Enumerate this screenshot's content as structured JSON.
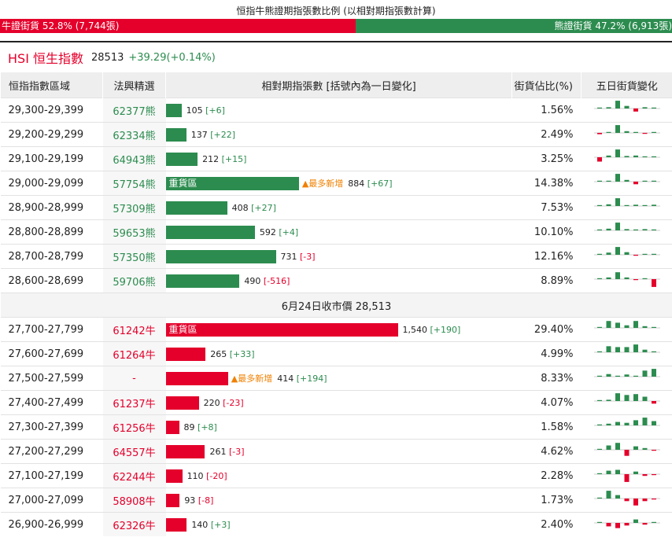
{
  "ratio": {
    "title": "恒指牛熊證期指張數比例 (以相對期指張數計算)",
    "bull_label": "牛證街貨 52.8% (7,744張)",
    "bear_label": "熊證街貨 47.2% (6,913張)",
    "bull_pct": 52.8,
    "bear_pct": 47.2,
    "bull_color": "#e4002b",
    "bear_color": "#2c8c4f"
  },
  "hsi": {
    "name": "HSI 恒生指數",
    "price": "28513",
    "change": "+39.29(+0.14%)"
  },
  "table": {
    "headers": [
      "恒指指數區域",
      "法興精選",
      "相對期指張數 [括號內為一日變化]",
      "街貨佔比(%)",
      "五日街貨變化"
    ],
    "heavy_label": "重貨區",
    "newest_label": "▲最多新增",
    "mid_label": "6月24日收市價 28,513",
    "max_count": 1540,
    "bear_rows": [
      {
        "range": "29,300-29,399",
        "code": "62377熊",
        "count": 105,
        "count_text": "105",
        "chg": "[+6]",
        "pct": "1.56%",
        "spark": [
          0.1,
          0.15,
          0.9,
          0.3,
          -0.35,
          0.15,
          0.1
        ]
      },
      {
        "range": "29,200-29,299",
        "code": "62334熊",
        "count": 137,
        "count_text": "137",
        "chg": "[+22]",
        "pct": "2.49%",
        "spark": [
          -0.15,
          0.1,
          0.9,
          0.2,
          0.1,
          -0.1,
          0.1
        ]
      },
      {
        "range": "29,100-29,199",
        "code": "64943熊",
        "count": 212,
        "count_text": "212",
        "chg": "[+15]",
        "pct": "3.25%",
        "spark": [
          -0.5,
          0.2,
          0.9,
          0.15,
          0.2,
          0.1,
          0.1
        ]
      },
      {
        "range": "29,000-29,099",
        "code": "57754熊",
        "count": 884,
        "count_text": "884",
        "chg": "[+67]",
        "pct": "14.38%",
        "heavy": true,
        "newest": true,
        "spark": [
          0.1,
          0.1,
          0.9,
          0.2,
          -0.3,
          0.1,
          0.1
        ]
      },
      {
        "range": "28,900-28,999",
        "code": "57309熊",
        "count": 408,
        "count_text": "408",
        "chg": "[+27]",
        "pct": "7.53%",
        "spark": [
          0.1,
          0.2,
          0.9,
          0.1,
          0.15,
          0.1,
          0.15
        ]
      },
      {
        "range": "28,800-28,899",
        "code": "59653熊",
        "count": 592,
        "count_text": "592",
        "chg": "[+4]",
        "pct": "10.10%",
        "spark": [
          0.1,
          0.2,
          0.9,
          0.15,
          0.1,
          0.15,
          0.05
        ]
      },
      {
        "range": "28,700-28,799",
        "code": "57350熊",
        "count": 731,
        "count_text": "731",
        "chg": "[-3]",
        "pct": "12.16%",
        "spark": [
          0.1,
          0.25,
          0.9,
          0.3,
          -0.05,
          0.1,
          0.0
        ]
      },
      {
        "range": "28,600-28,699",
        "code": "59706熊",
        "count": 490,
        "count_text": "490",
        "chg": "[-516]",
        "pct": "8.89%",
        "spark": [
          0.1,
          0.2,
          0.8,
          0.2,
          -0.1,
          0.0,
          -0.9
        ]
      }
    ],
    "bull_rows": [
      {
        "range": "27,700-27,799",
        "code": "61242牛",
        "count": 1540,
        "count_text": "1,540",
        "chg": "[+190]",
        "pct": "29.40%",
        "heavy": true,
        "spark": [
          0.1,
          0.8,
          0.6,
          0.3,
          0.8,
          0.2,
          0.1
        ]
      },
      {
        "range": "27,600-27,699",
        "code": "61264牛",
        "count": 265,
        "count_text": "265",
        "chg": "[+33]",
        "pct": "4.99%",
        "spark": [
          0.1,
          0.7,
          0.6,
          0.6,
          0.9,
          0.3,
          0.1
        ]
      },
      {
        "range": "27,500-27,599",
        "code": "-",
        "count": 414,
        "count_text": "414",
        "chg": "[+194]",
        "pct": "8.33%",
        "newest": true,
        "spark": [
          0.1,
          0.3,
          0.1,
          0.25,
          0.1,
          0.7,
          0.9
        ]
      },
      {
        "range": "27,400-27,499",
        "code": "61237牛",
        "count": 220,
        "count_text": "220",
        "chg": "[-23]",
        "pct": "4.07%",
        "spark": [
          0.1,
          0.15,
          0.9,
          0.7,
          0.8,
          0.5,
          -0.3
        ]
      },
      {
        "range": "27,300-27,399",
        "code": "61256牛",
        "count": 89,
        "count_text": "89",
        "chg": "[+8]",
        "pct": "1.58%",
        "spark": [
          0.1,
          0.2,
          0.4,
          0.3,
          0.6,
          0.9,
          0.5
        ]
      },
      {
        "range": "27,200-27,299",
        "code": "64557牛",
        "count": 261,
        "count_text": "261",
        "chg": "[-3]",
        "pct": "4.62%",
        "spark": [
          0.1,
          0.5,
          0.8,
          -0.7,
          0.4,
          0.2,
          -0.1
        ]
      },
      {
        "range": "27,100-27,199",
        "code": "62244牛",
        "count": 110,
        "count_text": "110",
        "chg": "[-20]",
        "pct": "2.28%",
        "spark": [
          0.1,
          0.4,
          0.5,
          -0.9,
          0.3,
          -0.2,
          -0.1
        ]
      },
      {
        "range": "27,000-27,099",
        "code": "58908牛",
        "count": 93,
        "count_text": "93",
        "chg": "[-8]",
        "pct": "1.73%",
        "spark": [
          0.1,
          0.9,
          0.4,
          -0.3,
          -0.8,
          -0.3,
          -0.1
        ]
      },
      {
        "range": "26,900-26,999",
        "code": "62326牛",
        "count": 140,
        "count_text": "140",
        "chg": "[+3]",
        "pct": "2.40%",
        "spark": [
          0.1,
          -0.4,
          -0.6,
          -0.3,
          0.4,
          -0.2,
          0.0
        ]
      }
    ]
  }
}
